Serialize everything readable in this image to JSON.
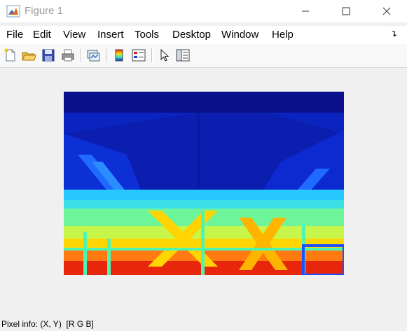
{
  "window": {
    "title": "Figure 1",
    "controls": [
      "minimize",
      "maximize",
      "close"
    ]
  },
  "menu": {
    "items": [
      "File",
      "Edit",
      "View",
      "Insert",
      "Tools",
      "Desktop",
      "Window",
      "Help"
    ]
  },
  "toolbar": {
    "tools": [
      "new-figure",
      "open-file",
      "save",
      "print",
      "link-plot",
      "insert-colorbar",
      "insert-legend",
      "edit-plot",
      "property-inspector"
    ]
  },
  "image": {
    "description_colormap": "jet",
    "colors": {
      "dark_blue": "#0a14a0",
      "blue": "#0c2fd6",
      "cyan": "#26e6ff",
      "green_cyan": "#4ef5b0",
      "yellow_green": "#c8f54a",
      "yellow": "#ffd400",
      "orange": "#ff7a10",
      "red": "#e8260c"
    }
  },
  "status": {
    "text": "Pixel info: (X, Y)  [R G B]"
  }
}
